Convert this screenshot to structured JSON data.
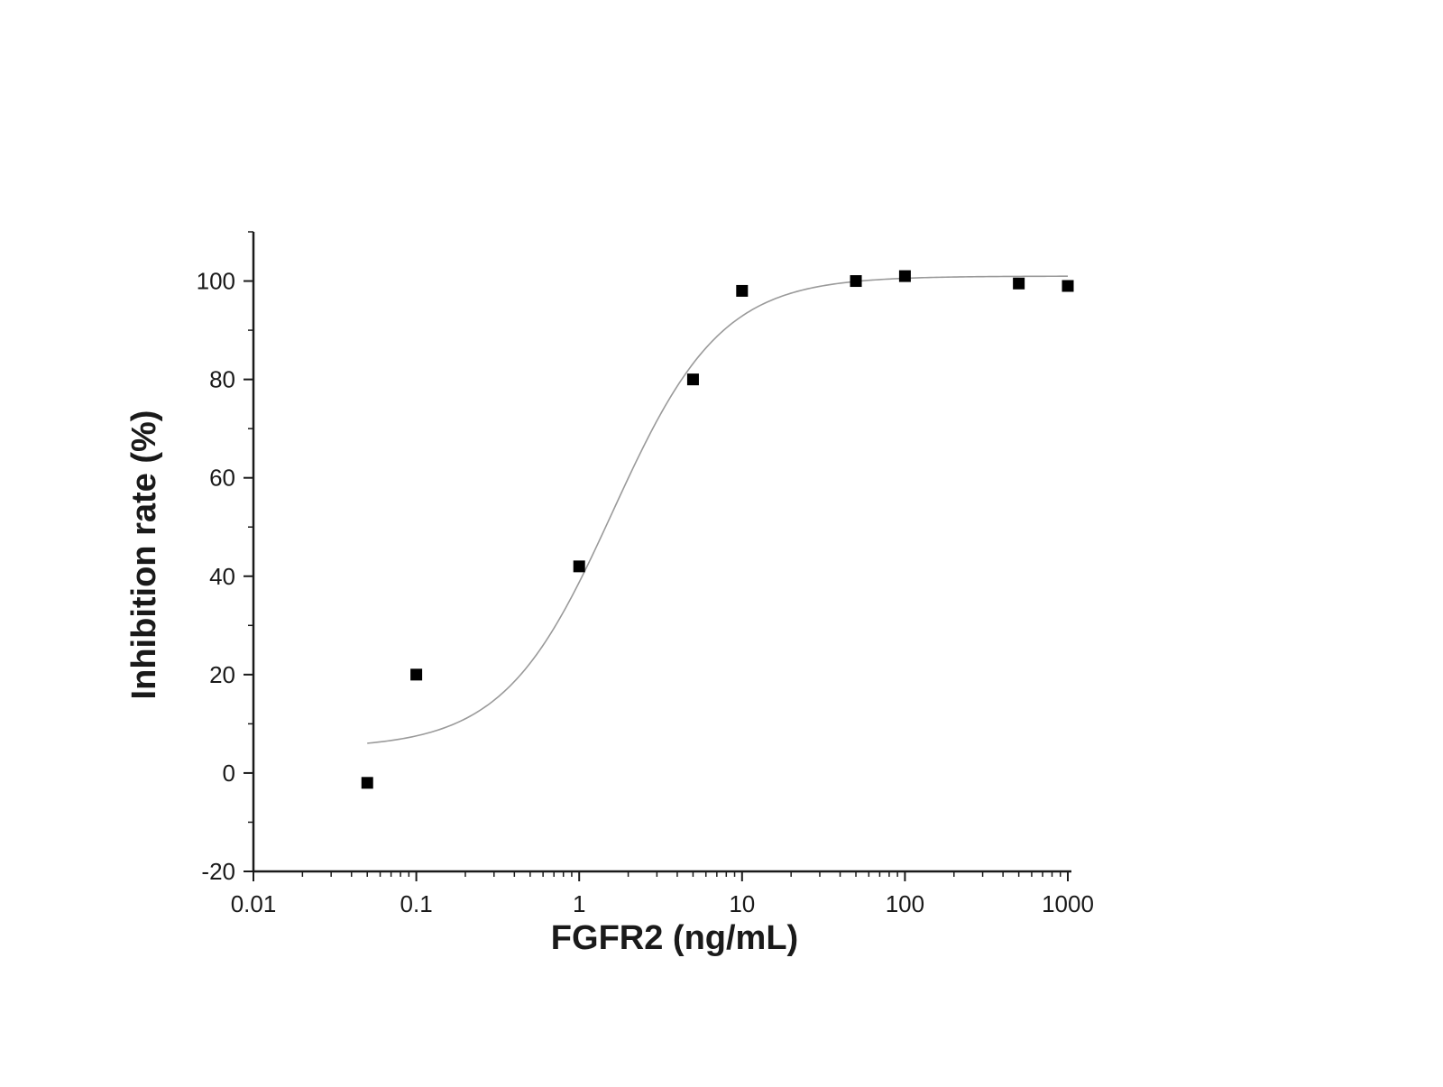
{
  "chart_data": {
    "type": "scatter",
    "title": "",
    "xlabel": "FGFR2 (ng/mL)",
    "ylabel": "Inhibition rate (%)",
    "xscale": "log",
    "xlim": [
      0.01,
      1000
    ],
    "ylim": [
      -20,
      110
    ],
    "grid": false,
    "legend": "none",
    "x_ticks": [
      0.01,
      0.1,
      1,
      10,
      100,
      1000
    ],
    "x_tick_labels": [
      "0.01",
      "0.1",
      "1",
      "10",
      "100",
      "1000"
    ],
    "y_ticks": [
      -20,
      0,
      20,
      40,
      60,
      80,
      100
    ],
    "y_tick_labels": [
      "-20",
      "0",
      "20",
      "40",
      "60",
      "80",
      "100"
    ],
    "series": [
      {
        "type": "scatter",
        "marker": "square",
        "color": "#000000",
        "x": [
          0.05,
          0.1,
          1,
          5,
          10,
          50,
          100,
          500,
          1000
        ],
        "y": [
          -2,
          20,
          42,
          80,
          98,
          100,
          101,
          99.5,
          99
        ]
      },
      {
        "type": "line",
        "fit": "sigmoidal dose-response",
        "color": "#9a9a9a",
        "x_range": [
          0.05,
          1000
        ],
        "bottom": 5,
        "top": 101,
        "ec50": 1.6,
        "hill": 1.3
      }
    ]
  }
}
